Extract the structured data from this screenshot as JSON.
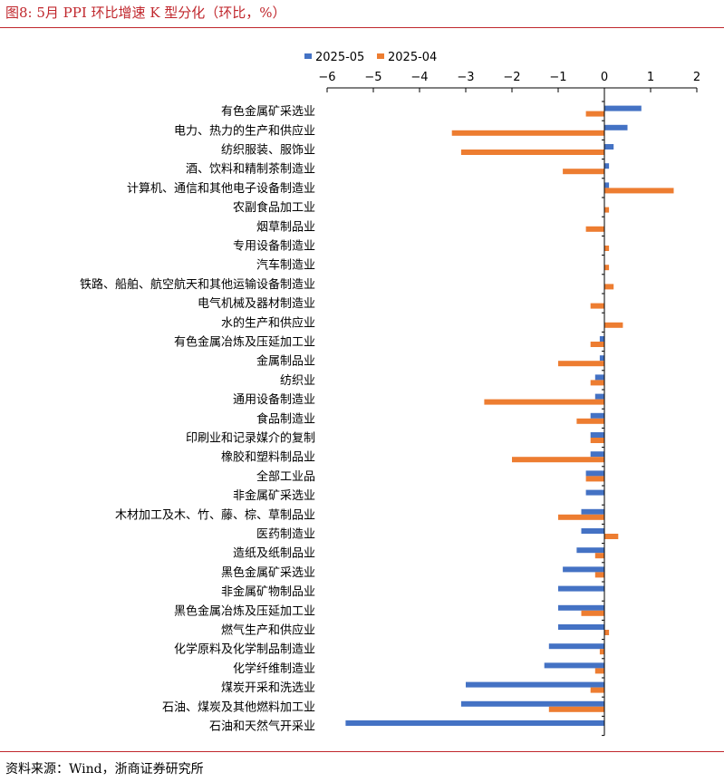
{
  "header": {
    "title": "图8:  5月 PPI 环比增速 K 型分化（环比，%）"
  },
  "footer": {
    "source": "资料来源：Wind，浙商证券研究所"
  },
  "chart_data": {
    "type": "bar",
    "orientation": "horizontal",
    "title": "",
    "xlabel": "",
    "ylabel": "",
    "xlim": [
      -6,
      2
    ],
    "xticks": [
      -6,
      -5,
      -4,
      -3,
      -2,
      -1,
      0,
      1,
      2
    ],
    "axis_position": "top",
    "grid": false,
    "legend_position": "top",
    "categories": [
      "有色金属矿采选业",
      "电力、热力的生产和供应业",
      "纺织服装、服饰业",
      "酒、饮料和精制茶制造业",
      "计算机、通信和其他电子设备制造业",
      "农副食品加工业",
      "烟草制品业",
      "专用设备制造业",
      "汽车制造业",
      "铁路、船舶、航空航天和其他运输设备制造业",
      "电气机械及器材制造业",
      "水的生产和供应业",
      "有色金属冶炼及压延加工业",
      "金属制品业",
      "纺织业",
      "通用设备制造业",
      "食品制造业",
      "印刷业和记录媒介的复制",
      "橡胶和塑料制品业",
      "全部工业品",
      "非金属矿采选业",
      "木材加工及木、竹、藤、棕、草制品业",
      "医药制造业",
      "造纸及纸制品业",
      "黑色金属矿采选业",
      "非金属矿物制品业",
      "黑色金属冶炼及压延加工业",
      "燃气生产和供应业",
      "化学原料及化学制品制造业",
      "化学纤维制造业",
      "煤炭开采和洗选业",
      "石油、煤炭及其他燃料加工业",
      "石油和天然气开采业"
    ],
    "series": [
      {
        "name": "2025-05",
        "color": "#4472c4",
        "values": [
          0.8,
          0.5,
          0.2,
          0.1,
          0.1,
          0.0,
          0.0,
          0.0,
          0.0,
          0.0,
          0.0,
          0.0,
          -0.1,
          -0.1,
          -0.2,
          -0.2,
          -0.3,
          -0.3,
          -0.3,
          -0.4,
          -0.4,
          -0.5,
          -0.5,
          -0.6,
          -0.9,
          -1.0,
          -1.0,
          -1.0,
          -1.2,
          -1.3,
          -3.0,
          -3.1,
          -5.6
        ]
      },
      {
        "name": "2025-04",
        "color": "#ed7d31",
        "values": [
          -0.4,
          -3.3,
          -3.1,
          -0.9,
          1.5,
          0.1,
          -0.4,
          0.1,
          0.1,
          0.2,
          -0.3,
          0.4,
          -0.3,
          -1.0,
          -0.3,
          -2.6,
          -0.6,
          -0.3,
          -2.0,
          -0.4,
          0.0,
          -1.0,
          0.3,
          -0.2,
          -0.2,
          0.0,
          -0.5,
          0.1,
          -0.1,
          -0.2,
          -0.3,
          -1.2,
          0.0
        ]
      }
    ]
  }
}
